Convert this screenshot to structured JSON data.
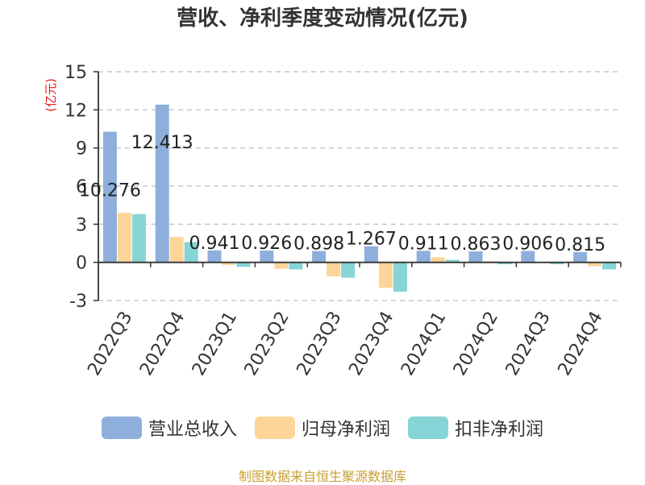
{
  "chart_data": {
    "type": "bar",
    "title": "营收、净利季度变动情况(亿元)",
    "ylabel": "(亿元)",
    "ylim": [
      -3,
      15
    ],
    "yticks": [
      -3,
      0,
      3,
      6,
      9,
      12,
      15
    ],
    "grid": true,
    "legend_position": "bottom",
    "categories": [
      "2022Q3",
      "2022Q4",
      "2023Q1",
      "2023Q2",
      "2023Q3",
      "2023Q4",
      "2024Q1",
      "2024Q2",
      "2024Q3",
      "2024Q4"
    ],
    "series": [
      {
        "name": "营业总收入",
        "color": "#8eafdb",
        "values": [
          10.276,
          12.413,
          0.941,
          0.926,
          0.898,
          1.267,
          0.911,
          0.863,
          0.906,
          0.815
        ]
      },
      {
        "name": "归母净利润",
        "color": "#fdd598",
        "values": [
          3.9,
          2.0,
          -0.2,
          -0.5,
          -1.1,
          -2.0,
          0.4,
          0.1,
          -0.05,
          -0.3
        ]
      },
      {
        "name": "扣非净利润",
        "color": "#86d4d6",
        "values": [
          3.8,
          1.6,
          -0.35,
          -0.55,
          -1.2,
          -2.3,
          0.2,
          -0.15,
          -0.15,
          -0.55
        ]
      }
    ],
    "data_labels": [
      "10.276",
      "12.413",
      "0.941",
      "0.926",
      "0.898",
      "1.267",
      "0.911",
      "0.863",
      "0.906",
      "0.815"
    ]
  },
  "legend": {
    "items": [
      {
        "label": "营业总收入",
        "color": "#8eafdb"
      },
      {
        "label": "归母净利润",
        "color": "#fdd598"
      },
      {
        "label": "扣非净利润",
        "color": "#86d4d6"
      }
    ]
  },
  "footer": {
    "source": "制图数据来自恒生聚源数据库"
  }
}
